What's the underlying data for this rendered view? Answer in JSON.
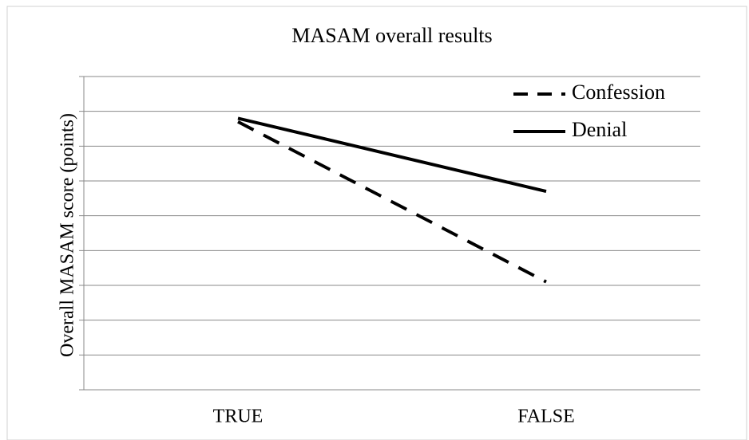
{
  "chart_data": {
    "type": "line",
    "title": "MASAM overall results",
    "ylabel": "Overall MASAM score (points)",
    "categories": [
      "TRUE",
      "FALSE"
    ],
    "series": [
      {
        "name": "Confession",
        "color": "#000000",
        "dash": "dashed",
        "values": [
          7.7,
          3.1
        ]
      },
      {
        "name": "Denial",
        "color": "#000000",
        "dash": "solid",
        "values": [
          7.8,
          5.7
        ]
      }
    ],
    "ylim": [
      0,
      9
    ],
    "yticks": [
      0,
      1,
      2,
      3,
      4,
      5,
      6,
      7,
      8,
      9
    ],
    "grid": true,
    "legend": "top-right"
  }
}
